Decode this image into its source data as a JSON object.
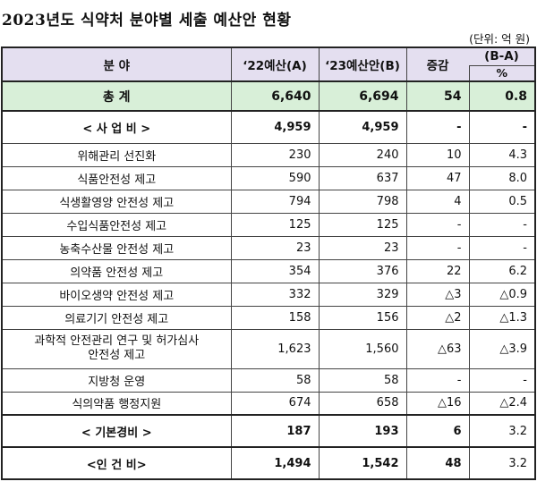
{
  "title": "2023년도 식약처 분야별 세출 예산안 현황",
  "unit": "(단위: 억 원)",
  "headers": {
    "category": "분 야",
    "budget_22": "‘22예산(A)",
    "budget_23": "‘23예산안(B)",
    "change": "증감",
    "diff": "(B-A)",
    "percent": "%"
  },
  "rows": [
    {
      "name": "총 계",
      "a": "6,640",
      "b": "6,694",
      "c": "54",
      "d": "0.8"
    },
    {
      "name": "< 사 업 비 >",
      "a": "4,959",
      "b": "4,959",
      "c": "-",
      "d": "-"
    },
    {
      "name": "위해관리 선진화",
      "a": "230",
      "b": "240",
      "c": "10",
      "d": "4.3"
    },
    {
      "name": "식품안전성 제고",
      "a": "590",
      "b": "637",
      "c": "47",
      "d": "8.0"
    },
    {
      "name": "식생활영양 안전성 제고",
      "a": "794",
      "b": "798",
      "c": "4",
      "d": "0.5"
    },
    {
      "name": "수입식품안전성 제고",
      "a": "125",
      "b": "125",
      "c": "-",
      "d": "-"
    },
    {
      "name": "농축수산물 안전성 제고",
      "a": "23",
      "b": "23",
      "c": "-",
      "d": "-"
    },
    {
      "name": "의약품 안전성 제고",
      "a": "354",
      "b": "376",
      "c": "22",
      "d": "6.2"
    },
    {
      "name": "바이오생약 안전성 제고",
      "a": "332",
      "b": "329",
      "c": "△3",
      "d": "△0.9"
    },
    {
      "name": "의료기기 안전성 제고",
      "a": "158",
      "b": "156",
      "c": "△2",
      "d": "△1.3"
    },
    {
      "name": "과학적 안전관리 연구 및 허가심사 안전성 제고",
      "a": "1,623",
      "b": "1,560",
      "c": "△63",
      "d": "△3.9"
    },
    {
      "name": "지방청 운영",
      "a": "58",
      "b": "58",
      "c": "-",
      "d": "-"
    },
    {
      "name": "식의약품 행정지원",
      "a": "674",
      "b": "658",
      "c": "△16",
      "d": "△2.4"
    },
    {
      "name": "< 기본경비 >",
      "a": "187",
      "b": "193",
      "c": "6",
      "d": "3.2"
    },
    {
      "name": "<인 건 비>",
      "a": "1,494",
      "b": "1,542",
      "c": "48",
      "d": "3.2"
    }
  ]
}
